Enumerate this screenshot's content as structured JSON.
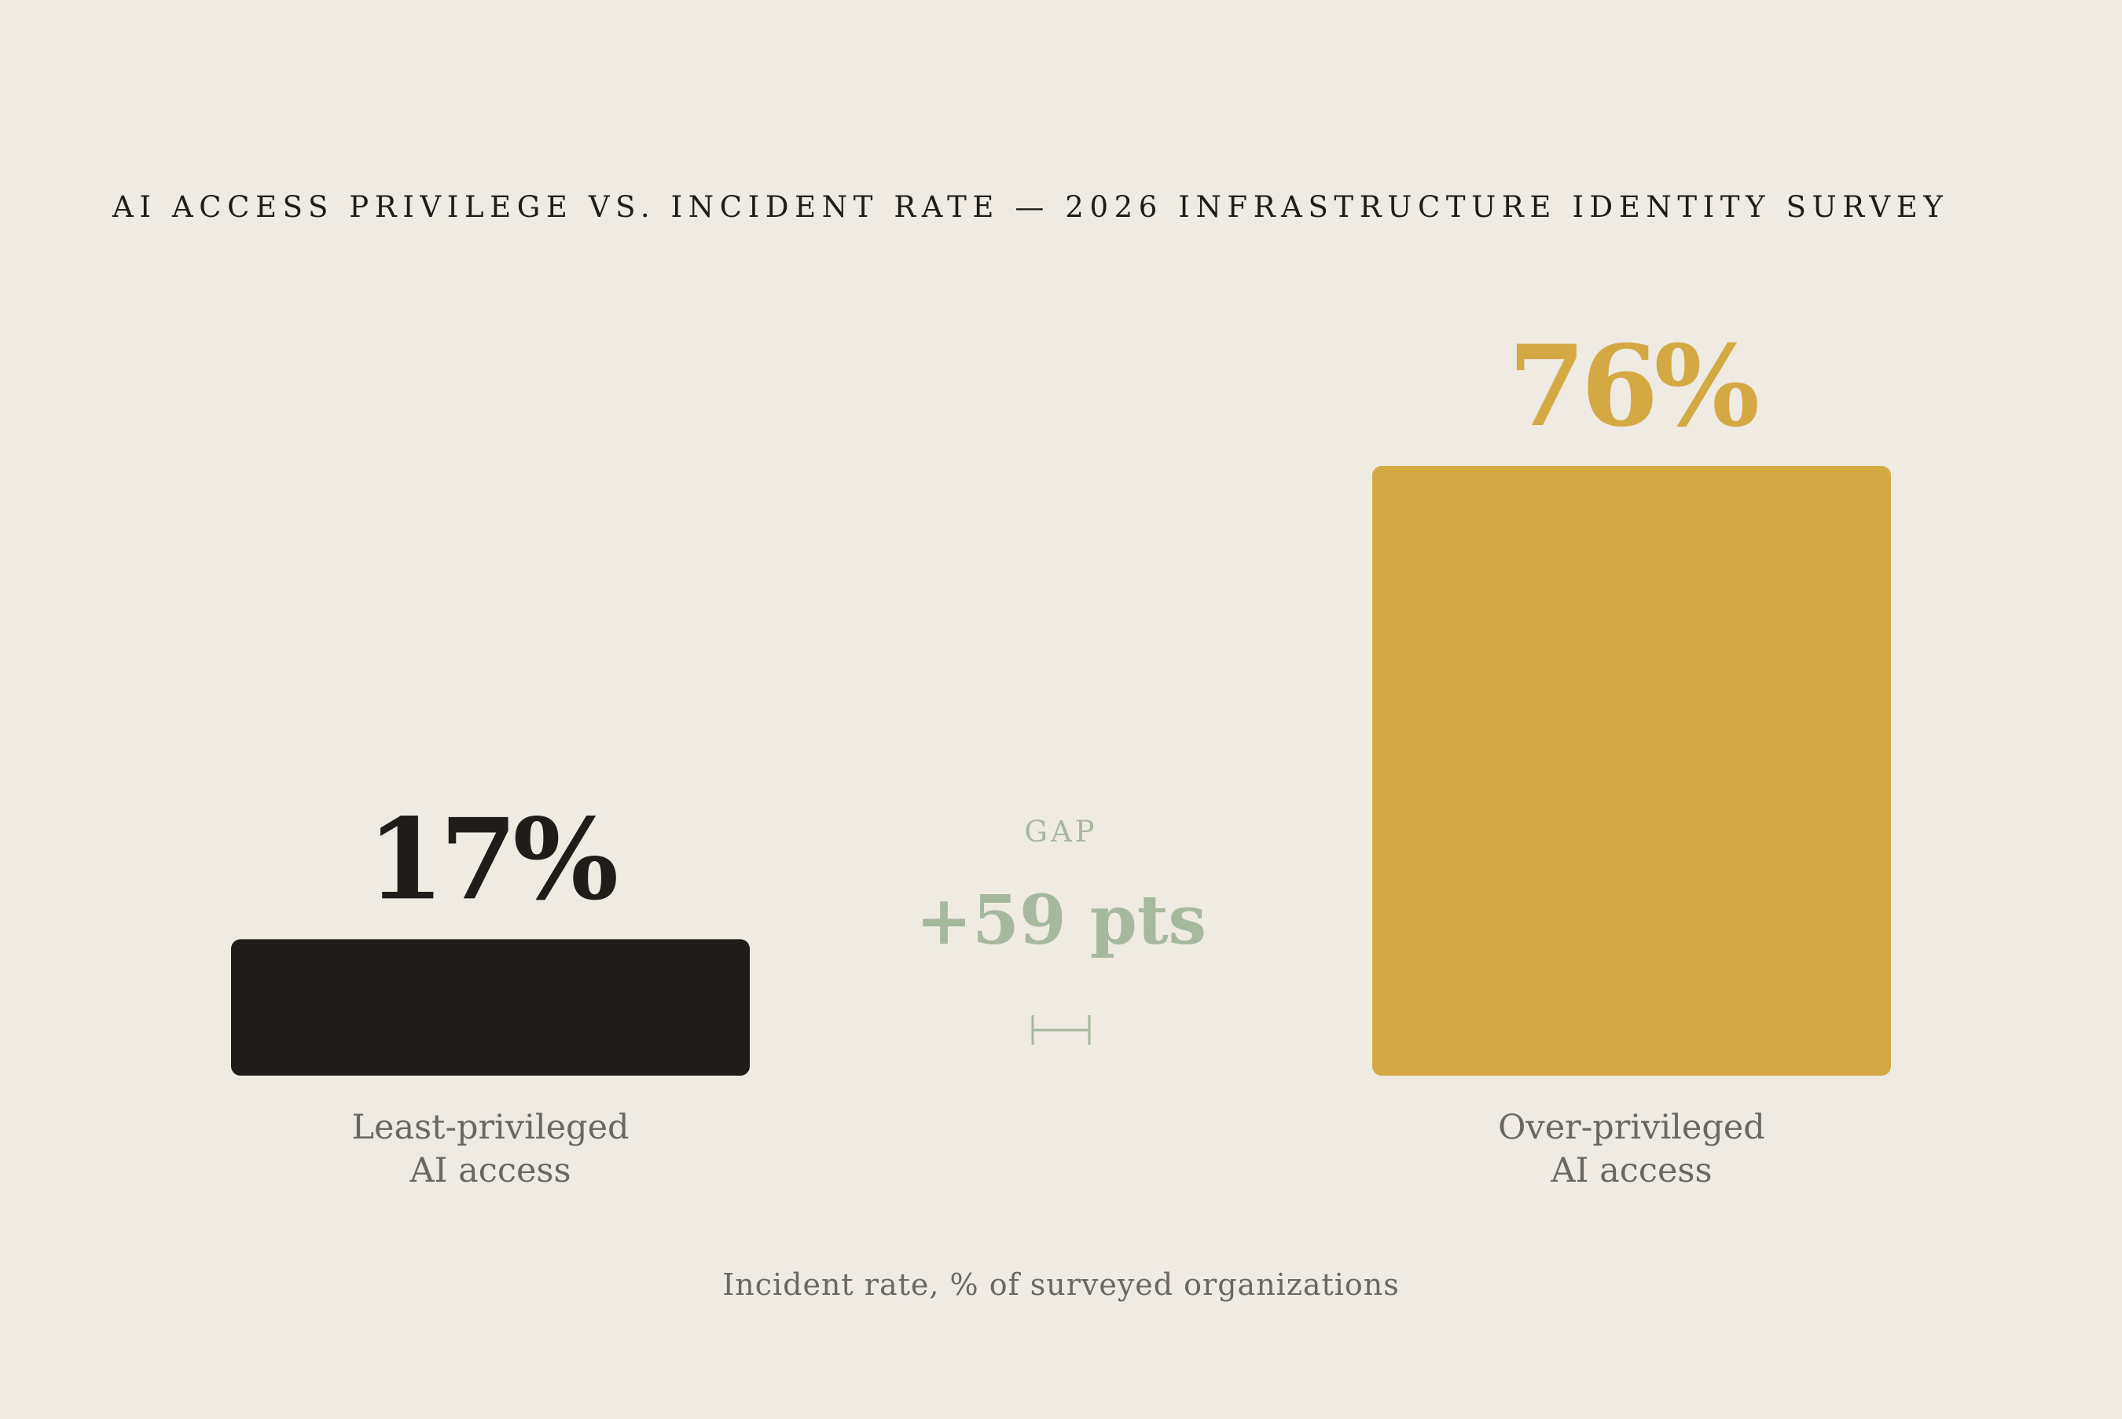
{
  "chart_data": {
    "type": "bar",
    "title": "AI ACCESS PRIVILEGE VS. INCIDENT RATE — 2026 INFRASTRUCTURE IDENTITY SURVEY",
    "categories": [
      [
        "Least-privileged",
        "AI access"
      ],
      [
        "Over-privileged",
        "AI access"
      ]
    ],
    "values": [
      17,
      76
    ],
    "value_labels": [
      "17%",
      "76%"
    ],
    "ylim": [
      0,
      76
    ],
    "grid": false,
    "gap": {
      "caption": "GAP",
      "label": "+59 pts",
      "value": 59
    },
    "footnote": "Incident rate, % of surveyed organizations",
    "colors": {
      "bars": [
        "#1e1d19",
        "#d4a944"
      ],
      "gap": "#a6b89e",
      "text": "#1e1d19",
      "muted": "#6b6761",
      "background": "#efebe3"
    }
  }
}
